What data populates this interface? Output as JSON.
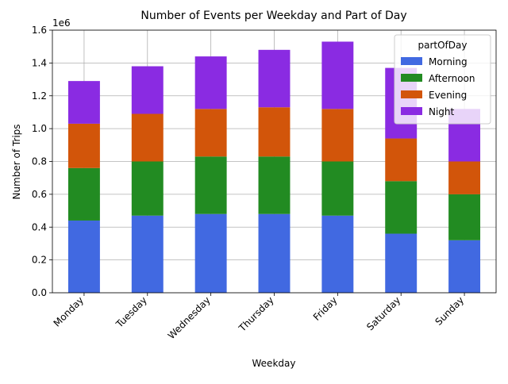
{
  "chart_data": {
    "type": "bar",
    "stacked": true,
    "title": "Number of Events per Weekday and Part of Day",
    "xlabel": "Weekday",
    "ylabel": "Number of Trips",
    "y_offset_label": "1e6",
    "ylim": [
      0,
      1.6
    ],
    "yticks": [
      "0.0",
      "0.2",
      "0.4",
      "0.6",
      "0.8",
      "1.0",
      "1.2",
      "1.4",
      "1.6"
    ],
    "grid": true,
    "legend": {
      "title": "partOfDay",
      "position": "top-right"
    },
    "categories": [
      "Monday",
      "Tuesday",
      "Wednesday",
      "Thursday",
      "Friday",
      "Saturday",
      "Sunday"
    ],
    "series": [
      {
        "name": "Morning",
        "color": "#4169e1",
        "values": [
          0.44,
          0.47,
          0.48,
          0.48,
          0.47,
          0.36,
          0.32
        ]
      },
      {
        "name": "Afternoon",
        "color": "#228b22",
        "values": [
          0.32,
          0.33,
          0.35,
          0.35,
          0.33,
          0.32,
          0.28
        ]
      },
      {
        "name": "Evening",
        "color": "#d2550a",
        "values": [
          0.27,
          0.29,
          0.29,
          0.3,
          0.32,
          0.26,
          0.2
        ]
      },
      {
        "name": "Night",
        "color": "#8a2be2",
        "values": [
          0.26,
          0.29,
          0.32,
          0.35,
          0.41,
          0.43,
          0.32
        ]
      }
    ]
  }
}
